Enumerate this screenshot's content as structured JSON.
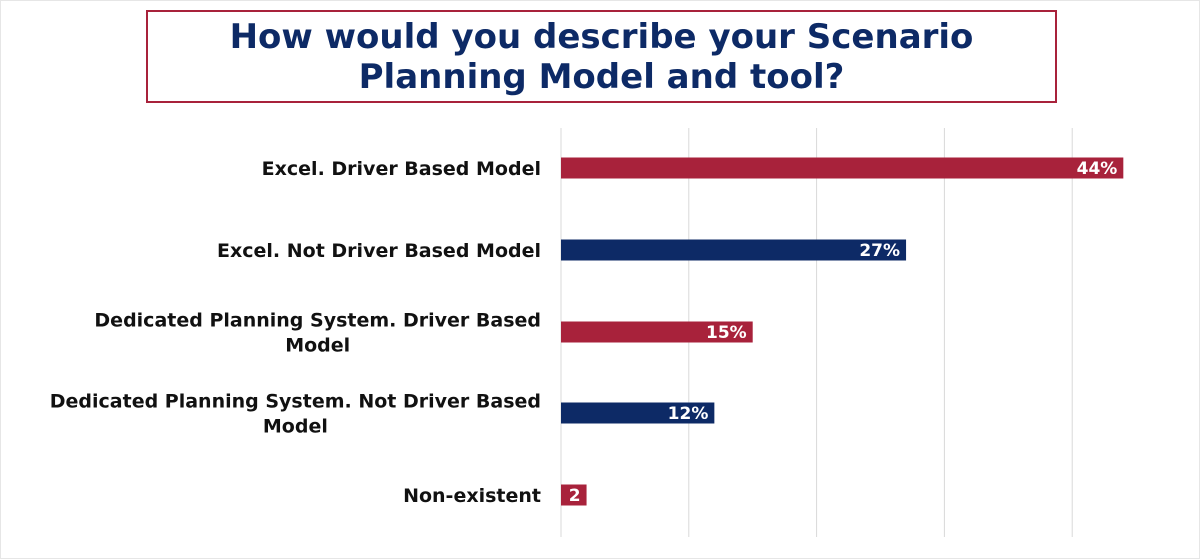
{
  "title": "How would you describe your Scenario Planning Model and tool?",
  "colors": {
    "title_text": "#0d2a66",
    "title_border": "#a8223b",
    "bar_red": "#a8223b",
    "bar_navy": "#0d2a66",
    "gridline": "#d9d9d9"
  },
  "chart_data": {
    "type": "bar",
    "orientation": "horizontal",
    "title": "How would you describe your Scenario Planning Model and tool?",
    "categories": [
      [
        "Excel. Driver Based Model"
      ],
      [
        "Excel. Not Driver Based Model"
      ],
      [
        "Dedicated Planning System. Driver Based",
        "Model"
      ],
      [
        "Dedicated Planning System. Not Driver Based",
        "Model"
      ],
      [
        "Non-existent"
      ]
    ],
    "values": [
      44,
      27,
      15,
      12,
      2
    ],
    "value_labels": [
      "44%",
      "27%",
      "15%",
      "12%",
      "2"
    ],
    "bar_colors": [
      "#a8223b",
      "#0d2a66",
      "#a8223b",
      "#0d2a66",
      "#a8223b"
    ],
    "xlim": [
      0,
      50
    ],
    "grid": true,
    "legend": "none"
  }
}
